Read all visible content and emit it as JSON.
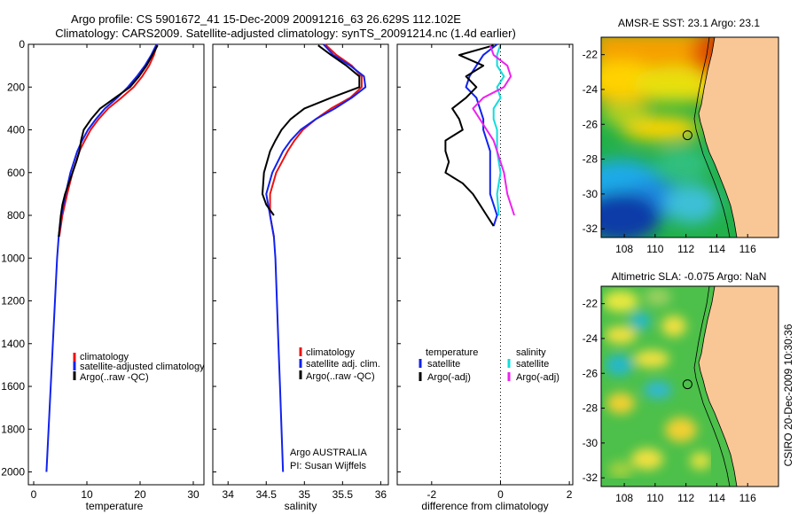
{
  "header": {
    "title_line1": "Argo profile: CS 5901672_41 15-Dec-2009 20091216_63 26.629S 112.102E",
    "title_line2": "Climatology: CARS2009. Satellite-adjusted climatology: synTS_20091214.nc (1.4d earlier)"
  },
  "side_label": "CSIRO 20-Dec-2009 10:30:36",
  "colors": {
    "climatology": "#ee1111",
    "satellite": "#1122ee",
    "argo": "#000000",
    "salinity_satellite": "#11dddd",
    "salinity_argo": "#ee22ee",
    "land": "#f9c796"
  },
  "chart_data": [
    {
      "type": "line",
      "xlabel": "temperature",
      "xlim": [
        -1,
        32
      ],
      "ylim": [
        2060,
        0
      ],
      "xticks": [
        "0",
        "10",
        "20",
        "30"
      ],
      "xtick_values": [
        0,
        10,
        20,
        30
      ],
      "yticks": [
        "0",
        "200",
        "400",
        "600",
        "800",
        "1000",
        "1200",
        "1400",
        "1600",
        "1800",
        "2000"
      ],
      "ytick_values": [
        0,
        200,
        400,
        600,
        800,
        1000,
        1200,
        1400,
        1600,
        1800,
        2000
      ],
      "legend": [
        "climatology",
        "satellite-adjusted climatology",
        "Argo(..raw -QC)"
      ],
      "series": [
        {
          "name": "climatology",
          "color": "#ee1111",
          "depth": [
            0,
            50,
            100,
            150,
            200,
            250,
            300,
            350,
            400,
            450,
            500,
            600,
            700,
            800,
            900
          ],
          "values": [
            23.2,
            22.6,
            21.7,
            20.4,
            18.8,
            16.5,
            14.0,
            12.2,
            10.7,
            9.6,
            8.6,
            7.3,
            6.3,
            5.4,
            4.8
          ]
        },
        {
          "name": "satellite-adjusted climatology",
          "color": "#1122ee",
          "depth": [
            0,
            50,
            100,
            150,
            200,
            250,
            300,
            350,
            400,
            450,
            500,
            600,
            700,
            800,
            900,
            1000,
            1200,
            1400,
            1600,
            1800,
            2000
          ],
          "values": [
            23.1,
            22.1,
            20.9,
            19.4,
            17.7,
            15.7,
            13.4,
            11.7,
            10.2,
            9.1,
            8.2,
            6.9,
            6.0,
            5.2,
            4.7,
            4.4,
            4.0,
            3.6,
            3.2,
            2.8,
            2.4
          ]
        },
        {
          "name": "Argo(..raw -QC)",
          "color": "#000000",
          "depth": [
            5,
            50,
            100,
            150,
            200,
            250,
            300,
            350,
            400,
            450,
            500,
            550,
            600,
            650,
            700,
            750,
            800,
            850,
            900
          ],
          "values": [
            23.3,
            22.3,
            21.2,
            19.8,
            18.1,
            15.3,
            12.5,
            10.8,
            9.4,
            8.9,
            8.6,
            8.0,
            7.3,
            6.6,
            5.9,
            5.4,
            5.1,
            4.9,
            4.7
          ]
        }
      ]
    },
    {
      "type": "line",
      "xlabel": "salinity",
      "xlim": [
        33.8,
        36.1
      ],
      "ylim": [
        2060,
        0
      ],
      "xticks": [
        "34",
        "34.5",
        "35",
        "35.5",
        "36"
      ],
      "xtick_values": [
        34,
        34.5,
        35,
        35.5,
        36
      ],
      "legend": [
        "climatology",
        "satellite adj. clim.",
        "Argo(..raw -QC)"
      ],
      "annotation": [
        "Argo AUSTRALIA",
        "PI: Susan Wijffels"
      ],
      "series": [
        {
          "name": "climatology",
          "color": "#ee1111",
          "depth": [
            0,
            50,
            100,
            150,
            200,
            250,
            300,
            350,
            400,
            450,
            500,
            600,
            700,
            800,
            900
          ],
          "values": [
            35.27,
            35.42,
            35.62,
            35.75,
            35.75,
            35.6,
            35.35,
            35.15,
            34.98,
            34.87,
            34.78,
            34.63,
            34.55,
            34.55,
            34.6
          ]
        },
        {
          "name": "satellite adj. clim.",
          "color": "#1122ee",
          "depth": [
            0,
            50,
            100,
            150,
            200,
            250,
            300,
            350,
            400,
            450,
            500,
            600,
            700,
            800,
            900,
            1000,
            1200,
            1400,
            1600,
            1800,
            2000
          ],
          "values": [
            35.25,
            35.38,
            35.6,
            35.78,
            35.8,
            35.62,
            35.4,
            35.15,
            34.95,
            34.82,
            34.72,
            34.58,
            34.5,
            34.55,
            34.6,
            34.62,
            34.64,
            34.66,
            34.68,
            34.7,
            34.72
          ]
        },
        {
          "name": "Argo(..raw -QC)",
          "color": "#000000",
          "depth": [
            5,
            50,
            100,
            150,
            200,
            250,
            300,
            350,
            400,
            450,
            500,
            600,
            700,
            750,
            800
          ],
          "values": [
            35.18,
            35.35,
            35.55,
            35.72,
            35.72,
            35.35,
            35.0,
            34.82,
            34.7,
            34.62,
            34.55,
            34.47,
            34.45,
            34.5,
            34.6
          ]
        }
      ]
    },
    {
      "type": "line",
      "xlabel": "difference from climatology",
      "xlim": [
        -3,
        2.1
      ],
      "ylim": [
        2060,
        0
      ],
      "xticks": [
        "-2",
        "0",
        "2"
      ],
      "xtick_values": [
        -2,
        0,
        2
      ],
      "legend_headers": [
        "temperature",
        "salinity"
      ],
      "legend_temperature": [
        "satellite",
        "Argo(-adj)"
      ],
      "legend_salinity": [
        "satellite",
        "Argo(-adj)"
      ],
      "series": [
        {
          "name": "temperature satellite",
          "color": "#1122ee",
          "depth": [
            0,
            50,
            100,
            150,
            200,
            250,
            300,
            350,
            400,
            500,
            600,
            700,
            800,
            850
          ],
          "values": [
            -0.1,
            -0.5,
            -0.7,
            -0.9,
            -1.0,
            -0.7,
            -0.6,
            -0.5,
            -0.5,
            -0.3,
            -0.3,
            -0.3,
            -0.1,
            -0.2
          ]
        },
        {
          "name": "temperature Argo(-adj)",
          "color": "#000000",
          "depth": [
            5,
            50,
            100,
            150,
            200,
            250,
            300,
            350,
            400,
            450,
            500,
            550,
            600,
            650,
            700,
            750,
            800,
            850
          ],
          "values": [
            -0.2,
            -1.2,
            -0.5,
            -1.0,
            -0.7,
            -1.0,
            -1.4,
            -1.2,
            -1.1,
            -1.6,
            -1.6,
            -1.5,
            -1.6,
            -1.1,
            -0.8,
            -0.6,
            -0.4,
            -0.2
          ]
        },
        {
          "name": "salinity satellite",
          "color": "#11dddd",
          "depth": [
            0,
            50,
            100,
            150,
            200,
            250,
            300,
            350,
            400,
            500,
            600,
            700,
            800
          ],
          "values": [
            0.0,
            -0.1,
            -0.1,
            0.1,
            -0.1,
            0.0,
            -0.2,
            -0.2,
            -0.1,
            -0.1,
            0.0,
            -0.1,
            -0.05
          ]
        },
        {
          "name": "salinity Argo(-adj)",
          "color": "#ee22ee",
          "depth": [
            5,
            50,
            100,
            150,
            200,
            250,
            300,
            350,
            400,
            450,
            500,
            600,
            700,
            750,
            800
          ],
          "values": [
            -0.3,
            -0.2,
            0.2,
            0.3,
            0.1,
            -0.5,
            -0.8,
            -0.6,
            -0.4,
            -0.2,
            -0.1,
            0.1,
            0.2,
            0.3,
            0.4
          ]
        }
      ]
    },
    {
      "type": "heatmap",
      "title": "AMSR-E SST: 23.1 Argo: 23.1",
      "xticks": [
        "108",
        "110",
        "112",
        "114",
        "116"
      ],
      "xtick_values": [
        108,
        110,
        112,
        114,
        116
      ],
      "yticks": [
        "-22",
        "-24",
        "-26",
        "-28",
        "-30",
        "-32"
      ],
      "ytick_values": [
        -22,
        -24,
        -26,
        -28,
        -30,
        -32
      ],
      "xlim": [
        106.5,
        118
      ],
      "ylim": [
        -32.5,
        -21.0
      ],
      "argo_position": [
        112.102,
        -26.629
      ]
    },
    {
      "type": "heatmap",
      "title": "Altimetric SLA: -0.075 Argo: NaN",
      "xticks": [
        "108",
        "110",
        "112",
        "114",
        "116"
      ],
      "xtick_values": [
        108,
        110,
        112,
        114,
        116
      ],
      "yticks": [
        "-22",
        "-24",
        "-26",
        "-28",
        "-30",
        "-32"
      ],
      "ytick_values": [
        -22,
        -24,
        -26,
        -28,
        -30,
        -32
      ],
      "xlim": [
        106.5,
        118
      ],
      "ylim": [
        -32.5,
        -21.0
      ],
      "argo_position": [
        112.102,
        -26.629
      ]
    }
  ]
}
